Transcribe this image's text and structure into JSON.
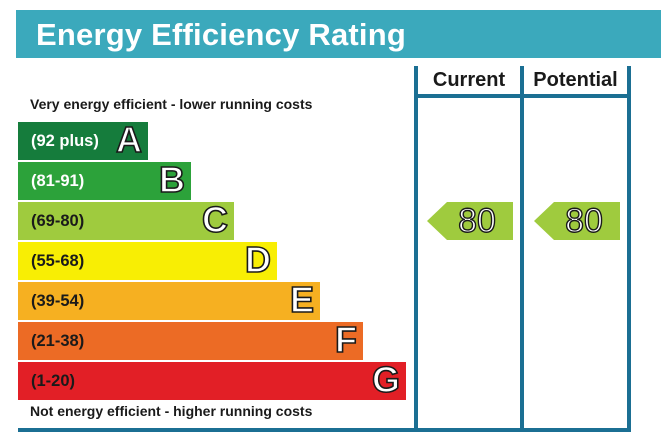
{
  "title": "Energy Efficiency Rating",
  "columns": {
    "current": "Current",
    "potential": "Potential"
  },
  "top_caption": "Very energy efficient - lower running costs",
  "bottom_caption": "Not energy efficient - higher running costs",
  "chart_data": {
    "type": "bar",
    "title": "Energy Efficiency Rating",
    "categories": [
      "A",
      "B",
      "C",
      "D",
      "E",
      "F",
      "G"
    ],
    "bands": [
      {
        "letter": "A",
        "range": "(92 plus)",
        "color": "#157c3c",
        "text_color": "#ffffff"
      },
      {
        "letter": "B",
        "range": "(81-91)",
        "color": "#2ca23a",
        "text_color": "#ffffff"
      },
      {
        "letter": "C",
        "range": "(69-80)",
        "color": "#9fcb3e",
        "text_color": "#1a1a1a"
      },
      {
        "letter": "D",
        "range": "(55-68)",
        "color": "#f8ee04",
        "text_color": "#1a1a1a"
      },
      {
        "letter": "E",
        "range": "(39-54)",
        "color": "#f6b021",
        "text_color": "#1a1a1a"
      },
      {
        "letter": "F",
        "range": "(21-38)",
        "color": "#ec6b25",
        "text_color": "#1a1a1a"
      },
      {
        "letter": "G",
        "range": "(1-20)",
        "color": "#e21f26",
        "text_color": "#1a1a1a"
      }
    ],
    "series": [
      {
        "name": "Current",
        "value": 80,
        "band": "C",
        "color": "#9fcb3e"
      },
      {
        "name": "Potential",
        "value": 80,
        "band": "C",
        "color": "#9fcb3e"
      }
    ]
  }
}
